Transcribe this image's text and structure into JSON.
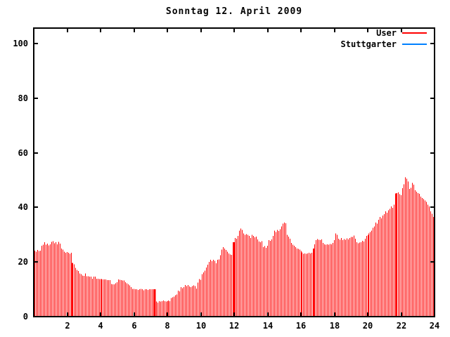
{
  "chart_data": {
    "type": "bar",
    "subtype": "impulses",
    "title": "Sonntag 12. April 2009",
    "background_color": "#ffffff",
    "frame_color": "#000000",
    "text_color": "#000000",
    "legend_position": "top-right",
    "x": {
      "label": "",
      "min": 0,
      "max": 24,
      "ticks": [
        2,
        4,
        6,
        8,
        10,
        12,
        14,
        16,
        18,
        20,
        22,
        24
      ],
      "unit": "hour"
    },
    "y": {
      "label": "",
      "min": 0,
      "max": 105,
      "ticks": [
        0,
        20,
        40,
        60,
        80,
        100
      ]
    },
    "series": [
      {
        "name": "User",
        "color": "#ff0000",
        "interval_minutes": 5,
        "values": [
          24.2,
          23.8,
          24.4,
          24.0,
          24.2,
          25.9,
          26.3,
          27.2,
          26.3,
          26.7,
          26.1,
          26.5,
          27.4,
          27.6,
          26.9,
          27.2,
          26.5,
          27.4,
          26.7,
          25.0,
          24.6,
          23.8,
          23.4,
          23.6,
          23.4,
          23.0,
          23.4,
          19.7,
          19.2,
          17.9,
          17.1,
          16.7,
          15.8,
          15.5,
          15.0,
          14.9,
          15.8,
          14.8,
          14.8,
          14.6,
          14.6,
          13.9,
          14.6,
          14.6,
          13.9,
          13.9,
          13.8,
          13.8,
          13.8,
          13.6,
          13.6,
          13.6,
          13.4,
          13.4,
          13.4,
          12.0,
          11.8,
          11.8,
          12.2,
          12.6,
          13.6,
          13.5,
          13.4,
          13.2,
          13.2,
          12.6,
          12.2,
          11.8,
          11.4,
          10.8,
          10.1,
          10.1,
          10.0,
          10.0,
          9.8,
          10.0,
          10.2,
          10.0,
          9.7,
          10.0,
          10.0,
          9.8,
          10.0,
          10.0,
          10.0,
          10.0,
          7.1,
          5.5,
          5.2,
          5.7,
          5.5,
          5.7,
          5.9,
          5.7,
          5.5,
          5.7,
          5.9,
          5.7,
          6.8,
          7.1,
          7.3,
          7.9,
          8.1,
          9.5,
          9.2,
          10.8,
          10.4,
          10.8,
          11.6,
          11.2,
          11.6,
          11.0,
          10.8,
          11.2,
          11.4,
          11.2,
          10.3,
          12.5,
          13.7,
          13.5,
          15.6,
          16.2,
          16.8,
          18.0,
          19.0,
          20.0,
          20.8,
          20.3,
          20.8,
          20.5,
          19.5,
          20.8,
          21.0,
          22.5,
          24.6,
          25.5,
          25.0,
          24.4,
          23.8,
          23.2,
          22.8,
          22.6,
          27.2,
          27.2,
          28.8,
          28.5,
          29.5,
          31.5,
          32.3,
          31.8,
          30.5,
          30.0,
          30.2,
          30.0,
          29.5,
          28.8,
          30.0,
          29.5,
          29.0,
          29.3,
          28.3,
          27.5,
          27.3,
          27.6,
          25.5,
          25.8,
          25.2,
          26.0,
          28.0,
          27.8,
          28.3,
          29.5,
          31.5,
          31.0,
          31.8,
          31.3,
          32.0,
          33.0,
          34.0,
          34.5,
          34.2,
          30.0,
          29.3,
          28.5,
          27.0,
          26.3,
          26.0,
          25.5,
          25.0,
          24.8,
          24.5,
          24.0,
          23.5,
          23.0,
          23.2,
          23.0,
          23.2,
          23.4,
          23.2,
          23.4,
          24.9,
          26.5,
          28.0,
          28.4,
          28.2,
          28.0,
          28.3,
          27.0,
          26.5,
          26.3,
          26.5,
          26.4,
          26.6,
          26.5,
          27.0,
          28.0,
          30.5,
          29.9,
          28.5,
          28.2,
          28.8,
          28.0,
          28.4,
          28.1,
          28.6,
          28.3,
          28.8,
          29.2,
          29.2,
          29.7,
          28.5,
          27.3,
          26.9,
          27.1,
          27.3,
          27.7,
          27.5,
          28.5,
          29.5,
          29.8,
          30.5,
          31.0,
          31.5,
          32.5,
          33.0,
          34.5,
          34.0,
          35.5,
          36.5,
          36.0,
          37.0,
          37.5,
          38.5,
          38.0,
          39.0,
          39.5,
          40.4,
          39.8,
          41.0,
          45.0,
          45.2,
          45.5,
          44.8,
          44.5,
          47.0,
          48.5,
          51.0,
          50.5,
          49.5,
          46.8,
          47.2,
          49.0,
          48.3,
          46.3,
          45.7,
          45.3,
          45.0,
          44.0,
          43.5,
          43.0,
          42.5,
          42.0,
          41.0,
          40.4,
          38.5,
          37.6,
          36.5,
          34.5
        ]
      },
      {
        "name": "Stuttgarter",
        "color": "#0080ff",
        "values": []
      }
    ],
    "solid_markers": [
      {
        "hour": 2.3,
        "value": 19.7
      },
      {
        "hour": 7.25,
        "value": 10.0
      },
      {
        "hour": 12.0,
        "value": 27.2
      },
      {
        "hour": 16.78,
        "value": 24.9
      },
      {
        "hour": 21.7,
        "value": 45.1
      }
    ]
  }
}
